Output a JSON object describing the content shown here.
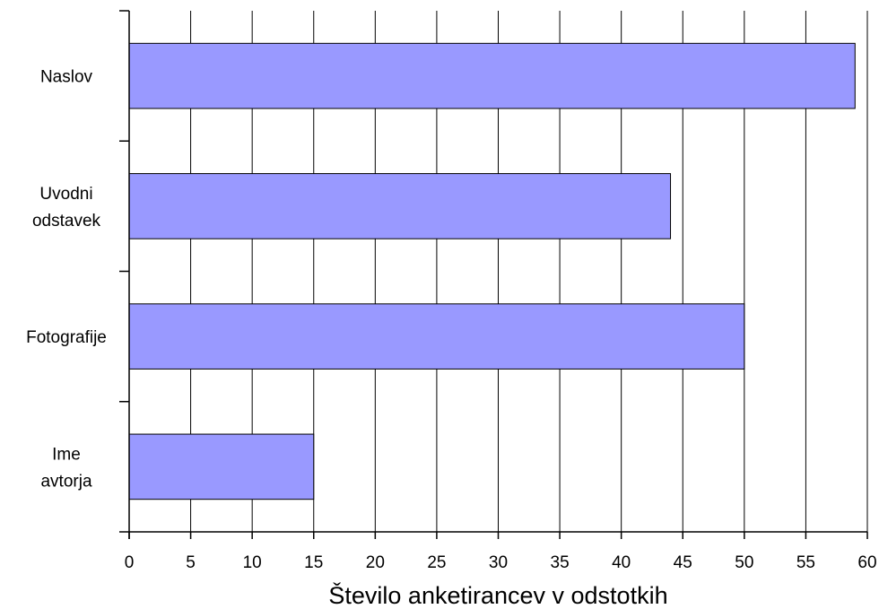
{
  "chart_data": {
    "type": "bar",
    "orientation": "horizontal",
    "categories": [
      [
        "Naslov"
      ],
      [
        "Uvodni",
        "odstavek"
      ],
      [
        "Fotografije"
      ],
      [
        "Ime",
        "avtorja"
      ]
    ],
    "values": [
      59,
      44,
      50,
      15
    ],
    "bar_color": "#9999ff",
    "xlabel": "Število anketirancev v odstotkih",
    "ylabel": "",
    "title": "",
    "xlim": [
      0,
      60
    ],
    "xticks": [
      0,
      5,
      10,
      15,
      20,
      25,
      30,
      35,
      40,
      45,
      50,
      55,
      60
    ],
    "grid": true,
    "legend": "none"
  }
}
